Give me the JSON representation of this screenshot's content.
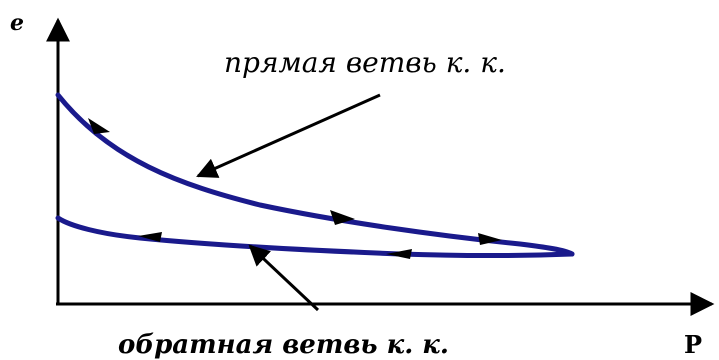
{
  "diagram": {
    "y_axis_label": "e",
    "x_axis_label": "P",
    "direct_branch_label": "прямая ветвь к. к.",
    "reverse_branch_label": "обратная ветвь к. к.",
    "curve_color": "#1a1a8c",
    "axis_color": "#000000"
  }
}
